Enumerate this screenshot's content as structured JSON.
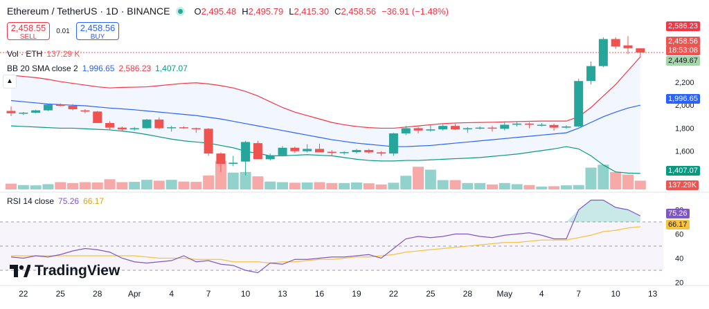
{
  "header": {
    "symbol": "Ethereum / TetherUS · 1D · BINANCE",
    "ohlc": [
      {
        "key": "O",
        "value": "2,495.48"
      },
      {
        "key": "H",
        "value": "2,495.79"
      },
      {
        "key": "L",
        "value": "2,415.30"
      },
      {
        "key": "C",
        "value": "2,458.56"
      },
      {
        "key": "",
        "value": "−36.91 (−1.48%)"
      }
    ]
  },
  "trade": {
    "sell_price": "2,458.55",
    "sell_label": "SELL",
    "spread": "0.01",
    "buy_price": "2,458.56",
    "buy_label": "BUY"
  },
  "legends": {
    "vol": {
      "name": "Vol · ETH",
      "value": "137.29 K"
    },
    "bb": {
      "name": "BB 20 SMA close 2",
      "basis": "1,996.65",
      "upper": "2,586.23",
      "lower": "1,407.07"
    },
    "rsi": {
      "name": "RSI 14 close",
      "rsi": "75.26",
      "ma": "66.17"
    }
  },
  "branding": "TradingView",
  "colors": {
    "up": "#26a69a",
    "down": "#ef5350",
    "upper": "#f23645",
    "basis": "#2962ff",
    "lower": "#089981",
    "rsi": "#7e57c2",
    "rsi_ma": "#f5c242"
  },
  "chart_data": [
    {
      "type": "candlestick",
      "title": "Ethereum / TetherUS · 1D · BINANCE",
      "x_ticks": [
        "22",
        "25",
        "28",
        "Apr",
        "4",
        "7",
        "10",
        "13",
        "16",
        "19",
        "22",
        "25",
        "28",
        "May",
        "4",
        "7",
        "10",
        "13"
      ],
      "y_ticks": [
        1600,
        1800,
        2000,
        2200
      ],
      "ylim": [
        1340,
        2650
      ],
      "candles": [
        {
          "o": 1950,
          "h": 1990,
          "l": 1905,
          "c": 1930
        },
        {
          "o": 1930,
          "h": 1940,
          "l": 1915,
          "c": 1935
        },
        {
          "o": 1935,
          "h": 1960,
          "l": 1930,
          "c": 1955
        },
        {
          "o": 1955,
          "h": 2010,
          "l": 1950,
          "c": 2005
        },
        {
          "o": 2005,
          "h": 2015,
          "l": 1990,
          "c": 1995
        },
        {
          "o": 1995,
          "h": 2010,
          "l": 1955,
          "c": 1965
        },
        {
          "o": 1955,
          "h": 1965,
          "l": 1930,
          "c": 1945
        },
        {
          "o": 1945,
          "h": 1950,
          "l": 1855,
          "c": 1845
        },
        {
          "o": 1845,
          "h": 1860,
          "l": 1790,
          "c": 1805
        },
        {
          "o": 1805,
          "h": 1815,
          "l": 1775,
          "c": 1790
        },
        {
          "o": 1790,
          "h": 1810,
          "l": 1780,
          "c": 1800
        },
        {
          "o": 1800,
          "h": 1880,
          "l": 1795,
          "c": 1875
        },
        {
          "o": 1875,
          "h": 1895,
          "l": 1790,
          "c": 1800
        },
        {
          "o": 1800,
          "h": 1820,
          "l": 1770,
          "c": 1808
        },
        {
          "o": 1808,
          "h": 1815,
          "l": 1795,
          "c": 1800
        },
        {
          "o": 1800,
          "h": 1805,
          "l": 1760,
          "c": 1795
        },
        {
          "o": 1795,
          "h": 1800,
          "l": 1560,
          "c": 1580
        },
        {
          "o": 1580,
          "h": 1590,
          "l": 1420,
          "c": 1490
        },
        {
          "o": 1490,
          "h": 1560,
          "l": 1470,
          "c": 1500
        },
        {
          "o": 1510,
          "h": 1690,
          "l": 1390,
          "c": 1680
        },
        {
          "o": 1670,
          "h": 1690,
          "l": 1530,
          "c": 1530
        },
        {
          "o": 1530,
          "h": 1580,
          "l": 1520,
          "c": 1565
        },
        {
          "o": 1565,
          "h": 1645,
          "l": 1555,
          "c": 1630
        },
        {
          "o": 1630,
          "h": 1640,
          "l": 1585,
          "c": 1600
        },
        {
          "o": 1600,
          "h": 1660,
          "l": 1590,
          "c": 1620
        },
        {
          "o": 1620,
          "h": 1665,
          "l": 1590,
          "c": 1590
        },
        {
          "o": 1595,
          "h": 1610,
          "l": 1555,
          "c": 1585
        },
        {
          "o": 1585,
          "h": 1600,
          "l": 1570,
          "c": 1592
        },
        {
          "o": 1592,
          "h": 1620,
          "l": 1580,
          "c": 1610
        },
        {
          "o": 1610,
          "h": 1620,
          "l": 1580,
          "c": 1590
        },
        {
          "o": 1590,
          "h": 1600,
          "l": 1560,
          "c": 1580
        },
        {
          "o": 1580,
          "h": 1760,
          "l": 1560,
          "c": 1755
        },
        {
          "o": 1755,
          "h": 1820,
          "l": 1740,
          "c": 1800
        },
        {
          "o": 1800,
          "h": 1810,
          "l": 1755,
          "c": 1780
        },
        {
          "o": 1780,
          "h": 1830,
          "l": 1770,
          "c": 1790
        },
        {
          "o": 1790,
          "h": 1835,
          "l": 1780,
          "c": 1820
        },
        {
          "o": 1820,
          "h": 1840,
          "l": 1785,
          "c": 1790
        },
        {
          "o": 1790,
          "h": 1810,
          "l": 1760,
          "c": 1800
        },
        {
          "o": 1800,
          "h": 1815,
          "l": 1790,
          "c": 1805
        },
        {
          "o": 1805,
          "h": 1820,
          "l": 1770,
          "c": 1800
        },
        {
          "o": 1795,
          "h": 1860,
          "l": 1780,
          "c": 1830
        },
        {
          "o": 1830,
          "h": 1855,
          "l": 1815,
          "c": 1840
        },
        {
          "o": 1840,
          "h": 1850,
          "l": 1800,
          "c": 1830
        },
        {
          "o": 1830,
          "h": 1845,
          "l": 1815,
          "c": 1830
        },
        {
          "o": 1828,
          "h": 1840,
          "l": 1780,
          "c": 1805
        },
        {
          "o": 1805,
          "h": 1825,
          "l": 1795,
          "c": 1815
        },
        {
          "o": 1815,
          "h": 2230,
          "l": 1810,
          "c": 2210
        },
        {
          "o": 2210,
          "h": 2380,
          "l": 2180,
          "c": 2340
        },
        {
          "o": 2340,
          "h": 2590,
          "l": 2330,
          "c": 2575
        },
        {
          "o": 2575,
          "h": 2590,
          "l": 2490,
          "c": 2510
        },
        {
          "o": 2520,
          "h": 2600,
          "l": 2445,
          "c": 2495
        },
        {
          "o": 2495,
          "h": 2496,
          "l": 2415,
          "c": 2458
        }
      ],
      "bb_upper": [
        2260,
        2250,
        2240,
        2225,
        2205,
        2190,
        2175,
        2160,
        2150,
        2155,
        2157,
        2160,
        2170,
        2180,
        2190,
        2195,
        2185,
        2170,
        2150,
        2120,
        2080,
        2030,
        1980,
        1940,
        1910,
        1880,
        1850,
        1830,
        1815,
        1805,
        1800,
        1800,
        1810,
        1820,
        1830,
        1840,
        1845,
        1848,
        1850,
        1852,
        1855,
        1858,
        1860,
        1862,
        1862,
        1862,
        1900,
        1980,
        2080,
        2180,
        2300,
        2420
      ],
      "bb_basis": [
        2040,
        2030,
        2020,
        2010,
        2005,
        2000,
        1995,
        1985,
        1975,
        1968,
        1960,
        1950,
        1940,
        1930,
        1920,
        1910,
        1895,
        1880,
        1860,
        1840,
        1820,
        1800,
        1780,
        1760,
        1740,
        1720,
        1700,
        1685,
        1670,
        1660,
        1650,
        1640,
        1640,
        1645,
        1650,
        1660,
        1670,
        1680,
        1690,
        1700,
        1710,
        1720,
        1730,
        1740,
        1750,
        1760,
        1800,
        1850,
        1900,
        1940,
        1975,
        2000
      ],
      "bb_lower": [
        1820,
        1815,
        1810,
        1805,
        1800,
        1800,
        1795,
        1790,
        1785,
        1775,
        1762,
        1745,
        1725,
        1705,
        1690,
        1680,
        1670,
        1650,
        1630,
        1600,
        1580,
        1560,
        1560,
        1565,
        1570,
        1565,
        1560,
        1545,
        1530,
        1520,
        1515,
        1515,
        1520,
        1520,
        1525,
        1530,
        1535,
        1540,
        1545,
        1555,
        1565,
        1575,
        1590,
        1605,
        1620,
        1640,
        1620,
        1560,
        1480,
        1420,
        1410,
        1407
      ],
      "volume": [
        20,
        15,
        14,
        18,
        25,
        22,
        25,
        24,
        35,
        25,
        26,
        33,
        30,
        33,
        27,
        26,
        48,
        98,
        58,
        60,
        45,
        27,
        25,
        23,
        24,
        25,
        22,
        22,
        24,
        21,
        17,
        23,
        47,
        78,
        68,
        32,
        32,
        22,
        22,
        17,
        22,
        18,
        15,
        10,
        11,
        14,
        15,
        75,
        85,
        60,
        51,
        30
      ]
    },
    {
      "type": "line",
      "title": "RSI 14 close",
      "y_ticks": [
        20,
        40,
        60,
        80
      ],
      "ylim": [
        18,
        90
      ],
      "series": [
        {
          "name": "RSI",
          "values": [
            41,
            40,
            42,
            41,
            43,
            46,
            48,
            47,
            45,
            40,
            37,
            36,
            37,
            38,
            42,
            37,
            38,
            35,
            34,
            30,
            28,
            36,
            35,
            39,
            39,
            40,
            41,
            41,
            42,
            43,
            40,
            48,
            56,
            58,
            57,
            58,
            60,
            60,
            58,
            57,
            59,
            60,
            61,
            59,
            56,
            56,
            80,
            88,
            88,
            82,
            80,
            75
          ]
        },
        {
          "name": "MA",
          "values": [
            42,
            42,
            42,
            42,
            42,
            42,
            42,
            42,
            42,
            42,
            42,
            41,
            40,
            40,
            40,
            39,
            39,
            39,
            37,
            37,
            37,
            36,
            37,
            37,
            38,
            39,
            39,
            40,
            41,
            41,
            42,
            43,
            45,
            46,
            47,
            48,
            49,
            50,
            51,
            52,
            53,
            53,
            54,
            55,
            55,
            55,
            57,
            59,
            62,
            63,
            65,
            66
          ]
        }
      ]
    }
  ],
  "right_tags": {
    "upper": "2,586.23",
    "price": "2,458.56",
    "timer": "18:53:08",
    "low": "2,449.67",
    "basis": "1,996.65",
    "lower": "1,407.07",
    "vol": "137.29K",
    "rsi": "75.26",
    "rsi_ma": "66.17"
  }
}
